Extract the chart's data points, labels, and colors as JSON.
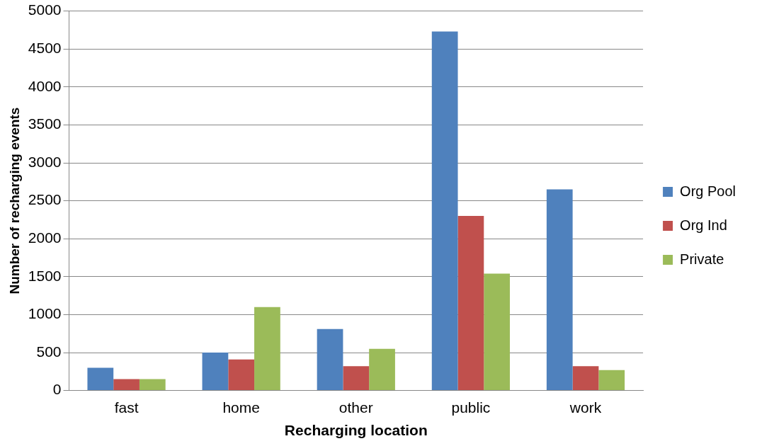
{
  "chart_data": {
    "type": "bar",
    "xlabel": "Recharging location",
    "ylabel": "Number of recharging events",
    "categories": [
      "fast",
      "home",
      "other",
      "public",
      "work"
    ],
    "series": [
      {
        "name": "Org Pool",
        "color": "#4f81bd",
        "values": [
          300,
          500,
          810,
          4730,
          2650
        ]
      },
      {
        "name": "Org Ind",
        "color": "#c0504d",
        "values": [
          150,
          410,
          320,
          2300,
          320
        ]
      },
      {
        "name": "Private",
        "color": "#9bbb59",
        "values": [
          150,
          1100,
          550,
          1540,
          270
        ]
      }
    ],
    "ylim": [
      0,
      5000
    ],
    "yticks": [
      0,
      500,
      1000,
      1500,
      2000,
      2500,
      3000,
      3500,
      4000,
      4500,
      5000
    ],
    "grid": "y",
    "legend": "right"
  }
}
